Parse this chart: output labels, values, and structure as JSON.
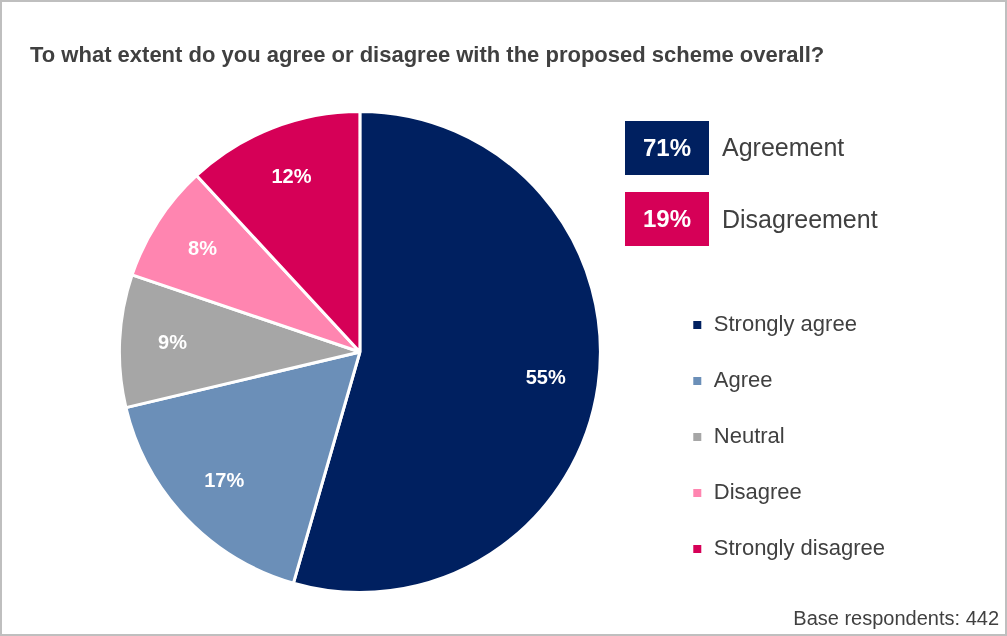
{
  "chart_data": {
    "type": "pie",
    "title": "To what extent do you agree or disagree with the proposed scheme overall?",
    "categories": [
      "Strongly agree",
      "Agree",
      "Neutral",
      "Disagree",
      "Strongly disagree"
    ],
    "values": [
      55,
      17,
      9,
      8,
      12
    ],
    "colors": [
      "#002060",
      "#6b8fb8",
      "#a6a6a6",
      "#ff85b0",
      "#d60057"
    ],
    "value_labels": [
      "55%",
      "17%",
      "9%",
      "8%",
      "12%"
    ],
    "legend": "right",
    "annotations": [
      "71%",
      "Agreement",
      "19%",
      "Disagreement",
      "Base respondents: 442"
    ]
  }
}
